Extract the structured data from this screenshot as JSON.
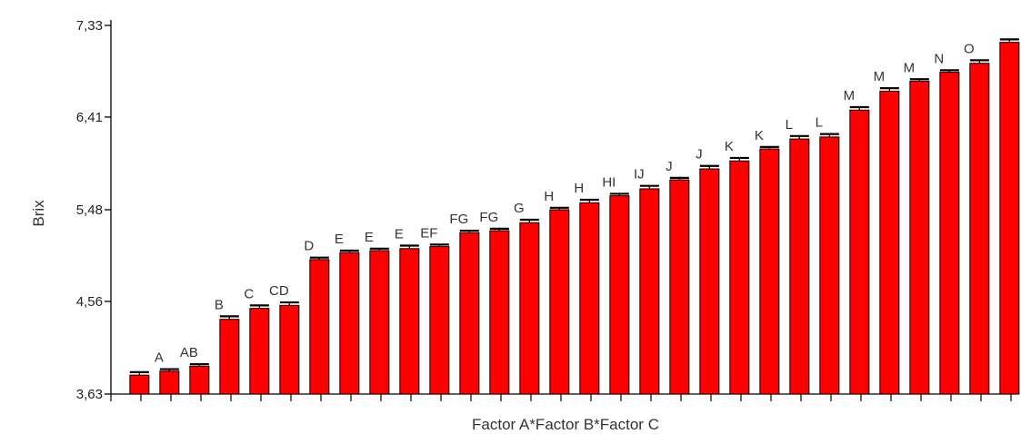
{
  "chart_data": {
    "type": "bar",
    "xlabel": "Factor A*Factor B*Factor C",
    "ylabel": "Brix",
    "ylim": [
      3.63,
      7.33
    ],
    "y_ticks": [
      "3,63",
      "4,56",
      "5,48",
      "6,41",
      "7,33"
    ],
    "y_tick_values": [
      3.63,
      4.56,
      5.48,
      6.41,
      7.33
    ],
    "grid": false,
    "legend": "none",
    "bar_color": "#ff0000",
    "series": [
      {
        "values": [
          3.82,
          3.86,
          3.91,
          4.38,
          4.49,
          4.52,
          4.98,
          5.05,
          5.07,
          5.09,
          5.11,
          5.25,
          5.27,
          5.35,
          5.48,
          5.55,
          5.62,
          5.69,
          5.78,
          5.89,
          5.97,
          6.09,
          6.19,
          6.21,
          6.48,
          6.67,
          6.77,
          6.86,
          6.95,
          7.16
        ],
        "error": [
          0.03,
          0.02,
          0.02,
          0.03,
          0.03,
          0.03,
          0.02,
          0.02,
          0.02,
          0.03,
          0.02,
          0.02,
          0.02,
          0.03,
          0.02,
          0.03,
          0.02,
          0.03,
          0.02,
          0.03,
          0.03,
          0.02,
          0.03,
          0.03,
          0.03,
          0.03,
          0.02,
          0.02,
          0.03,
          0.03
        ],
        "letters": [
          "",
          "A",
          "AB",
          "B",
          "C",
          "CD",
          "D",
          "E",
          "E",
          "E",
          "EF",
          "FG",
          "FG",
          "G",
          "H",
          "H",
          "HI",
          "IJ",
          "J",
          "J",
          "K",
          "K",
          "L",
          "L",
          "M",
          "M",
          "M",
          "N",
          "O",
          ""
        ]
      }
    ]
  }
}
